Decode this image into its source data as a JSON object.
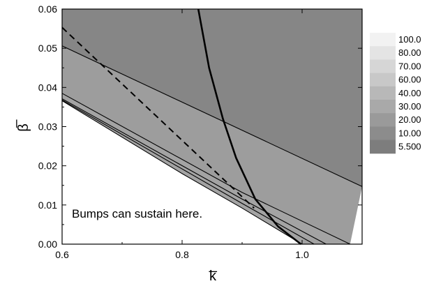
{
  "chart_data": {
    "type": "contour",
    "title": "",
    "xlabel": "k̅",
    "ylabel": "β̅",
    "xlim": [
      0.6,
      1.1
    ],
    "ylim": [
      0.0,
      0.06
    ],
    "x_ticks": [
      "0.6",
      "0.8",
      "1.0"
    ],
    "x_tick_values": [
      0.6,
      0.8,
      1.0
    ],
    "y_ticks": [
      "0.00",
      "0.01",
      "0.02",
      "0.03",
      "0.04",
      "0.05",
      "0.06"
    ],
    "y_tick_values": [
      0.0,
      0.01,
      0.02,
      0.03,
      0.04,
      0.05,
      0.06
    ],
    "annotation": "Bumps can sustain here.",
    "annotation_at": [
      0.61,
      0.0085
    ],
    "legend": {
      "placement": "right",
      "levels": [
        "100.0",
        "80.00",
        "70.00",
        "60.00",
        "40.00",
        "30.00",
        "20.00",
        "10.00",
        "5.500"
      ],
      "colors": [
        "#f2f2f2",
        "#e4e4e4",
        "#d6d6d6",
        "#c8c8c8",
        "#b8b8b8",
        "#a9a9a9",
        "#9a9a9a",
        "#8c8c8c",
        "#7d7d7d"
      ]
    },
    "regions": [
      {
        "color": "#868686",
        "upper": [
          [
            0.6,
            0.06
          ],
          [
            1.1,
            0.06
          ]
        ],
        "lower": [
          [
            0.6,
            0.0506
          ],
          [
            1.1,
            0.0147
          ]
        ]
      },
      {
        "color": "#9d9d9d",
        "upper": [
          [
            0.6,
            0.0506
          ],
          [
            1.1,
            0.0147
          ]
        ],
        "lower": [
          [
            0.6,
            0.0385
          ],
          [
            0.9,
            0.0132
          ],
          [
            1.08,
            0.0
          ]
        ]
      },
      {
        "color": "#a3a3a3",
        "upper": [
          [
            0.6,
            0.0385
          ],
          [
            0.9,
            0.0132
          ],
          [
            1.08,
            0.0
          ]
        ],
        "lower": [
          [
            0.6,
            0.0366
          ],
          [
            0.8,
            0.018
          ],
          [
            0.9,
            0.0092
          ],
          [
            1.0,
            0.0
          ]
        ]
      }
    ],
    "contour_lines": [
      {
        "points": [
          [
            0.6,
            0.0506
          ],
          [
            1.1,
            0.0147
          ]
        ]
      },
      {
        "points": [
          [
            0.6,
            0.0385
          ],
          [
            0.9,
            0.0132
          ],
          [
            1.08,
            0.0
          ]
        ]
      },
      {
        "points": [
          [
            0.6,
            0.0371
          ],
          [
            0.9,
            0.0115
          ],
          [
            1.04,
            0.0
          ]
        ]
      },
      {
        "points": [
          [
            0.6,
            0.0368
          ],
          [
            0.9,
            0.0104
          ],
          [
            1.02,
            0.0
          ]
        ]
      },
      {
        "points": [
          [
            0.6,
            0.0366
          ],
          [
            0.8,
            0.018
          ],
          [
            0.9,
            0.0092
          ],
          [
            1.0,
            0.0
          ]
        ]
      }
    ],
    "dashed_line": {
      "points": [
        [
          0.6,
          0.0553
        ],
        [
          0.92,
          0.0092
        ]
      ]
    },
    "thick_curve": {
      "points": [
        [
          0.827,
          0.06
        ],
        [
          0.845,
          0.045
        ],
        [
          0.868,
          0.032
        ],
        [
          0.89,
          0.022
        ],
        [
          0.922,
          0.0115
        ],
        [
          0.96,
          0.0045
        ],
        [
          0.998,
          0.0
        ]
      ]
    }
  }
}
